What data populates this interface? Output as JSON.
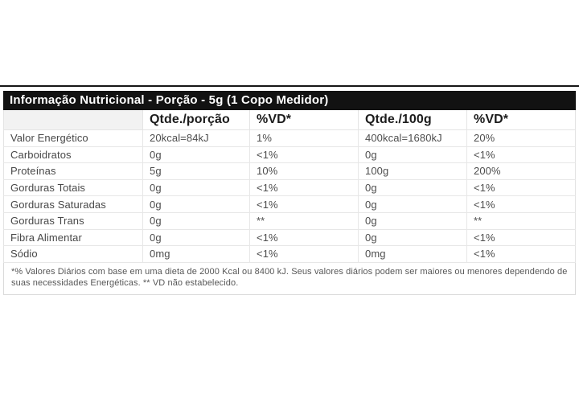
{
  "title": "Informação Nutricional - Porção - 5g (1 Copo Medidor)",
  "table": {
    "columns": [
      "",
      "Qtde./porção",
      "%VD*",
      "Qtde./100g",
      "%VD*"
    ],
    "rows": [
      {
        "label": "Valor Energético",
        "values": [
          "20kcal=84kJ",
          "1%",
          "400kcal=1680kJ",
          "20%"
        ]
      },
      {
        "label": "Carboidratos",
        "values": [
          "0g",
          "<1%",
          "0g",
          "<1%"
        ]
      },
      {
        "label": "Proteínas",
        "values": [
          "5g",
          "10%",
          "100g",
          "200%"
        ]
      },
      {
        "label": "Gorduras Totais",
        "values": [
          "0g",
          "<1%",
          "0g",
          "<1%"
        ]
      },
      {
        "label": "Gorduras Saturadas",
        "values": [
          "0g",
          "<1%",
          "0g",
          "<1%"
        ]
      },
      {
        "label": "Gorduras Trans",
        "values": [
          "0g",
          "**",
          "0g",
          "**"
        ]
      },
      {
        "label": "Fibra Alimentar",
        "values": [
          "0g",
          "<1%",
          "0g",
          "<1%"
        ]
      },
      {
        "label": "Sódio",
        "values": [
          "0mg",
          "<1%",
          "0mg",
          "<1%"
        ]
      }
    ]
  },
  "footnote": "*% Valores Diários com base em uma dieta de 2000 Kcal ou 8400 kJ. Seus valores diários podem ser maiores ou menores dependendo de suas necessidades Energéticas. ** VD não estabelecido.",
  "colors": {
    "title_bar_bg": "#121212",
    "title_text": "#ffffff",
    "grid_line": "#e4e4e4",
    "header_first_cell_bg": "#f2f2f2",
    "body_text": "#4d4d4d"
  }
}
